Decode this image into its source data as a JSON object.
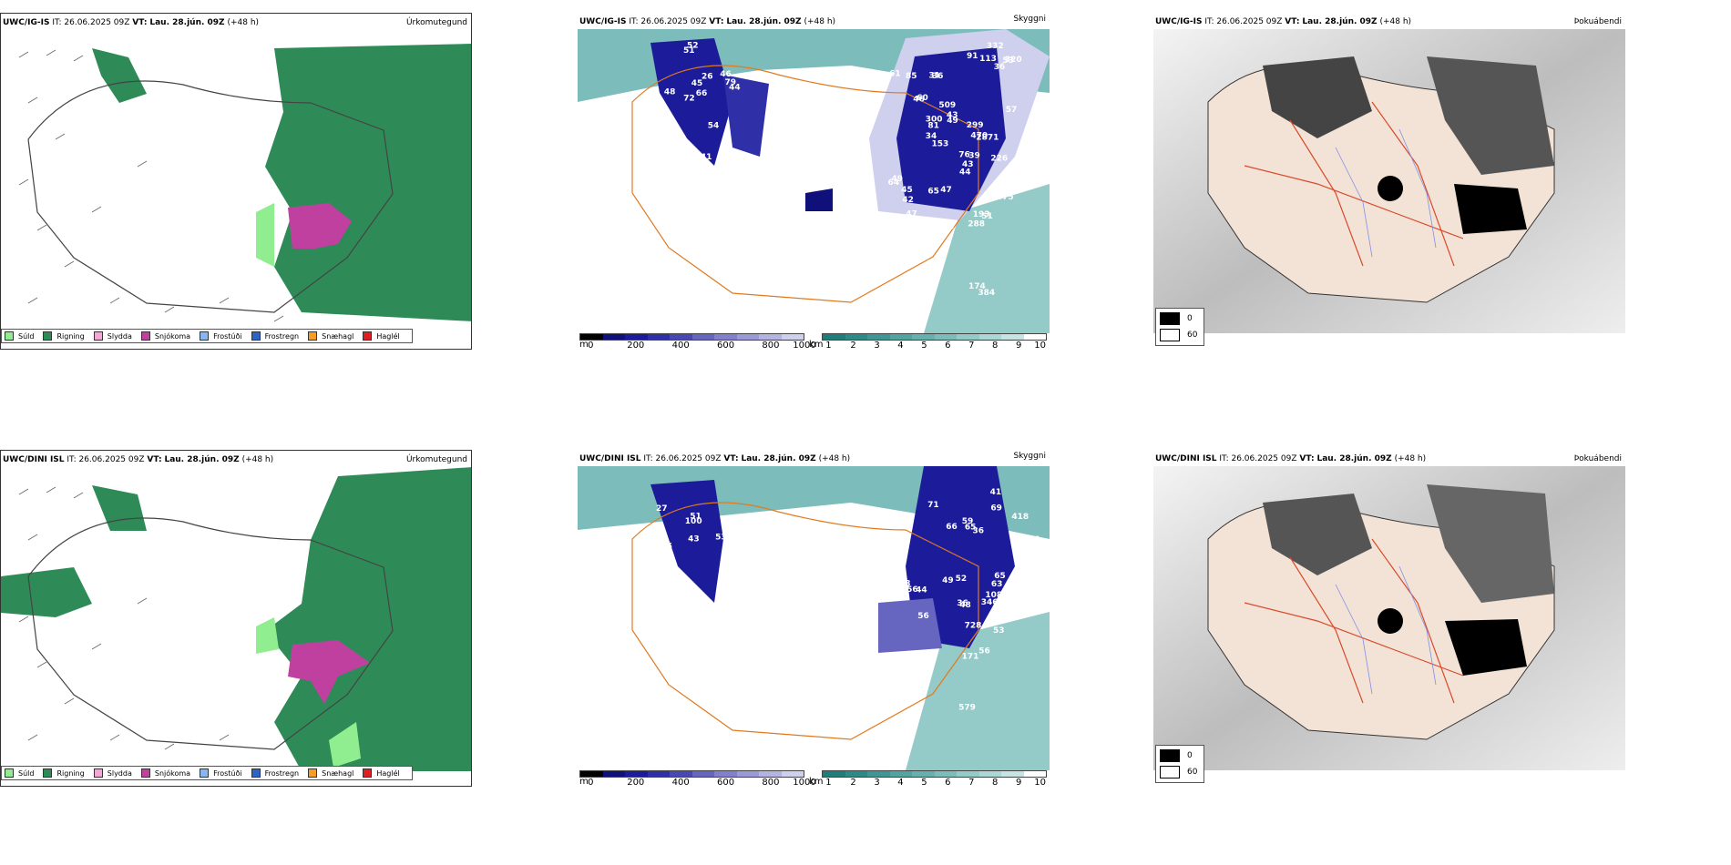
{
  "rows": [
    {
      "model": "UWC/IG-IS",
      "it_label": "IT:",
      "it_value": "26.06.2025 09Z",
      "vt_label": "VT:",
      "vt_value": "Lau. 28.jún. 09Z",
      "lead": "(+48 h)"
    },
    {
      "model": "UWC/DINI ISL",
      "it_label": "IT:",
      "it_value": "26.06.2025 09Z",
      "vt_label": "VT:",
      "vt_value": "Lau. 28.jún. 09Z",
      "lead": "(+48 h)"
    }
  ],
  "panel_types": {
    "precip": "Úrkomutegund",
    "visibility": "Skyggni",
    "fog": "Þokuábendi"
  },
  "precip_legend": [
    {
      "label": "Súld",
      "color": "#90ee90"
    },
    {
      "label": "Rigning",
      "color": "#2e8b57"
    },
    {
      "label": "Slydda",
      "color": "#f4a6d7"
    },
    {
      "label": "Snjókoma",
      "color": "#c040a0"
    },
    {
      "label": "Frostúði",
      "color": "#87b7f0"
    },
    {
      "label": "Frostregn",
      "color": "#2b66c6"
    },
    {
      "label": "Snæhagl",
      "color": "#f0a020"
    },
    {
      "label": "Haglél",
      "color": "#e02020"
    }
  ],
  "cloud_base_bar": {
    "unit": "m",
    "ticks": [
      "0",
      "200",
      "400",
      "600",
      "800",
      "1000"
    ],
    "colors": [
      "#000000",
      "#10107a",
      "#1c1c9a",
      "#2f2fa8",
      "#4848b4",
      "#6666c0",
      "#8080cc",
      "#9a9ad6",
      "#b4b4e2",
      "#cfcfee"
    ]
  },
  "visibility_bar": {
    "unit": "km",
    "ticks": [
      "1",
      "2",
      "3",
      "4",
      "5",
      "6",
      "7",
      "8",
      "9",
      "10"
    ],
    "colors": [
      "#1f7d7a",
      "#2d8b87",
      "#3e9794",
      "#52a4a1",
      "#66b1ae",
      "#7cbdbb",
      "#94cac8",
      "#acd7d5",
      "#c5e4e2",
      "#ffffff"
    ]
  },
  "fog_legend": [
    {
      "label": "0",
      "color": "#000000"
    },
    {
      "label": "60",
      "color": "#ffffff"
    }
  ],
  "cloud_labels_top": [
    "153",
    "36",
    "34",
    "26",
    "52",
    "31",
    "45",
    "49",
    "60",
    "44",
    "42",
    "36",
    "66",
    "39",
    "61",
    "51",
    "57",
    "76",
    "79",
    "81",
    "65",
    "72",
    "85",
    "91",
    "92",
    "51",
    "42",
    "54",
    "48",
    "46",
    "48",
    "44",
    "47",
    "44",
    "43",
    "48",
    "40",
    "49",
    "64",
    "46",
    "53",
    "43",
    "41",
    "45",
    "52",
    "49",
    "47",
    "113",
    "52",
    "300",
    "320",
    "332",
    "470",
    "288",
    "575",
    "942",
    "509",
    "299",
    "2871",
    "226",
    "174",
    "193",
    "384"
  ],
  "cloud_labels_bottom": [
    "36",
    "58",
    "36",
    "27",
    "53",
    "32",
    "37",
    "44",
    "36",
    "51",
    "65",
    "56",
    "59",
    "71",
    "52",
    "43",
    "346",
    "45",
    "42",
    "41",
    "66",
    "53",
    "63",
    "65",
    "65",
    "56",
    "49",
    "43",
    "69",
    "48",
    "52",
    "56",
    "59",
    "100",
    "108",
    "63",
    "418",
    "171",
    "579",
    "728",
    "706"
  ]
}
